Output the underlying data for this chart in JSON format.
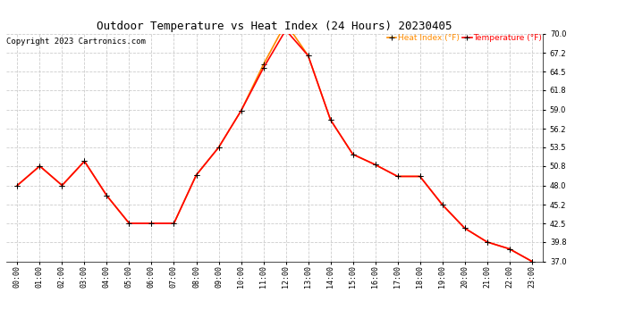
{
  "title": "Outdoor Temperature vs Heat Index (24 Hours) 20230405",
  "copyright": "Copyright 2023 Cartronics.com",
  "hours": [
    "00:00",
    "01:00",
    "02:00",
    "03:00",
    "04:00",
    "05:00",
    "06:00",
    "07:00",
    "08:00",
    "09:00",
    "10:00",
    "11:00",
    "12:00",
    "13:00",
    "14:00",
    "15:00",
    "16:00",
    "17:00",
    "18:00",
    "19:00",
    "20:00",
    "21:00",
    "22:00",
    "23:00"
  ],
  "temperature": [
    48.0,
    50.8,
    48.0,
    51.5,
    46.5,
    42.5,
    42.5,
    42.5,
    49.5,
    53.5,
    58.8,
    65.0,
    70.5,
    66.8,
    57.5,
    52.5,
    51.0,
    49.3,
    49.3,
    45.2,
    41.8,
    39.8,
    38.8,
    37.0
  ],
  "heat_index": [
    48.0,
    50.8,
    48.0,
    51.5,
    46.5,
    42.5,
    42.5,
    42.5,
    49.5,
    53.5,
    58.8,
    65.5,
    71.5,
    66.8,
    57.5,
    52.5,
    51.0,
    49.3,
    49.3,
    45.2,
    41.8,
    39.8,
    38.8,
    37.0
  ],
  "temp_color": "#ff0000",
  "heat_index_color": "#ff8c00",
  "ylim": [
    37.0,
    70.0
  ],
  "yticks": [
    37.0,
    39.8,
    42.5,
    45.2,
    48.0,
    50.8,
    53.5,
    56.2,
    59.0,
    61.8,
    64.5,
    67.2,
    70.0
  ],
  "background_color": "#ffffff",
  "grid_color": "#cccccc",
  "title_fontsize": 9,
  "copyright_fontsize": 6.5,
  "tick_fontsize": 6,
  "legend_fontsize": 6.5,
  "legend_heat_index": "Heat Index (°F)",
  "legend_temperature": "Temperature (°F)"
}
